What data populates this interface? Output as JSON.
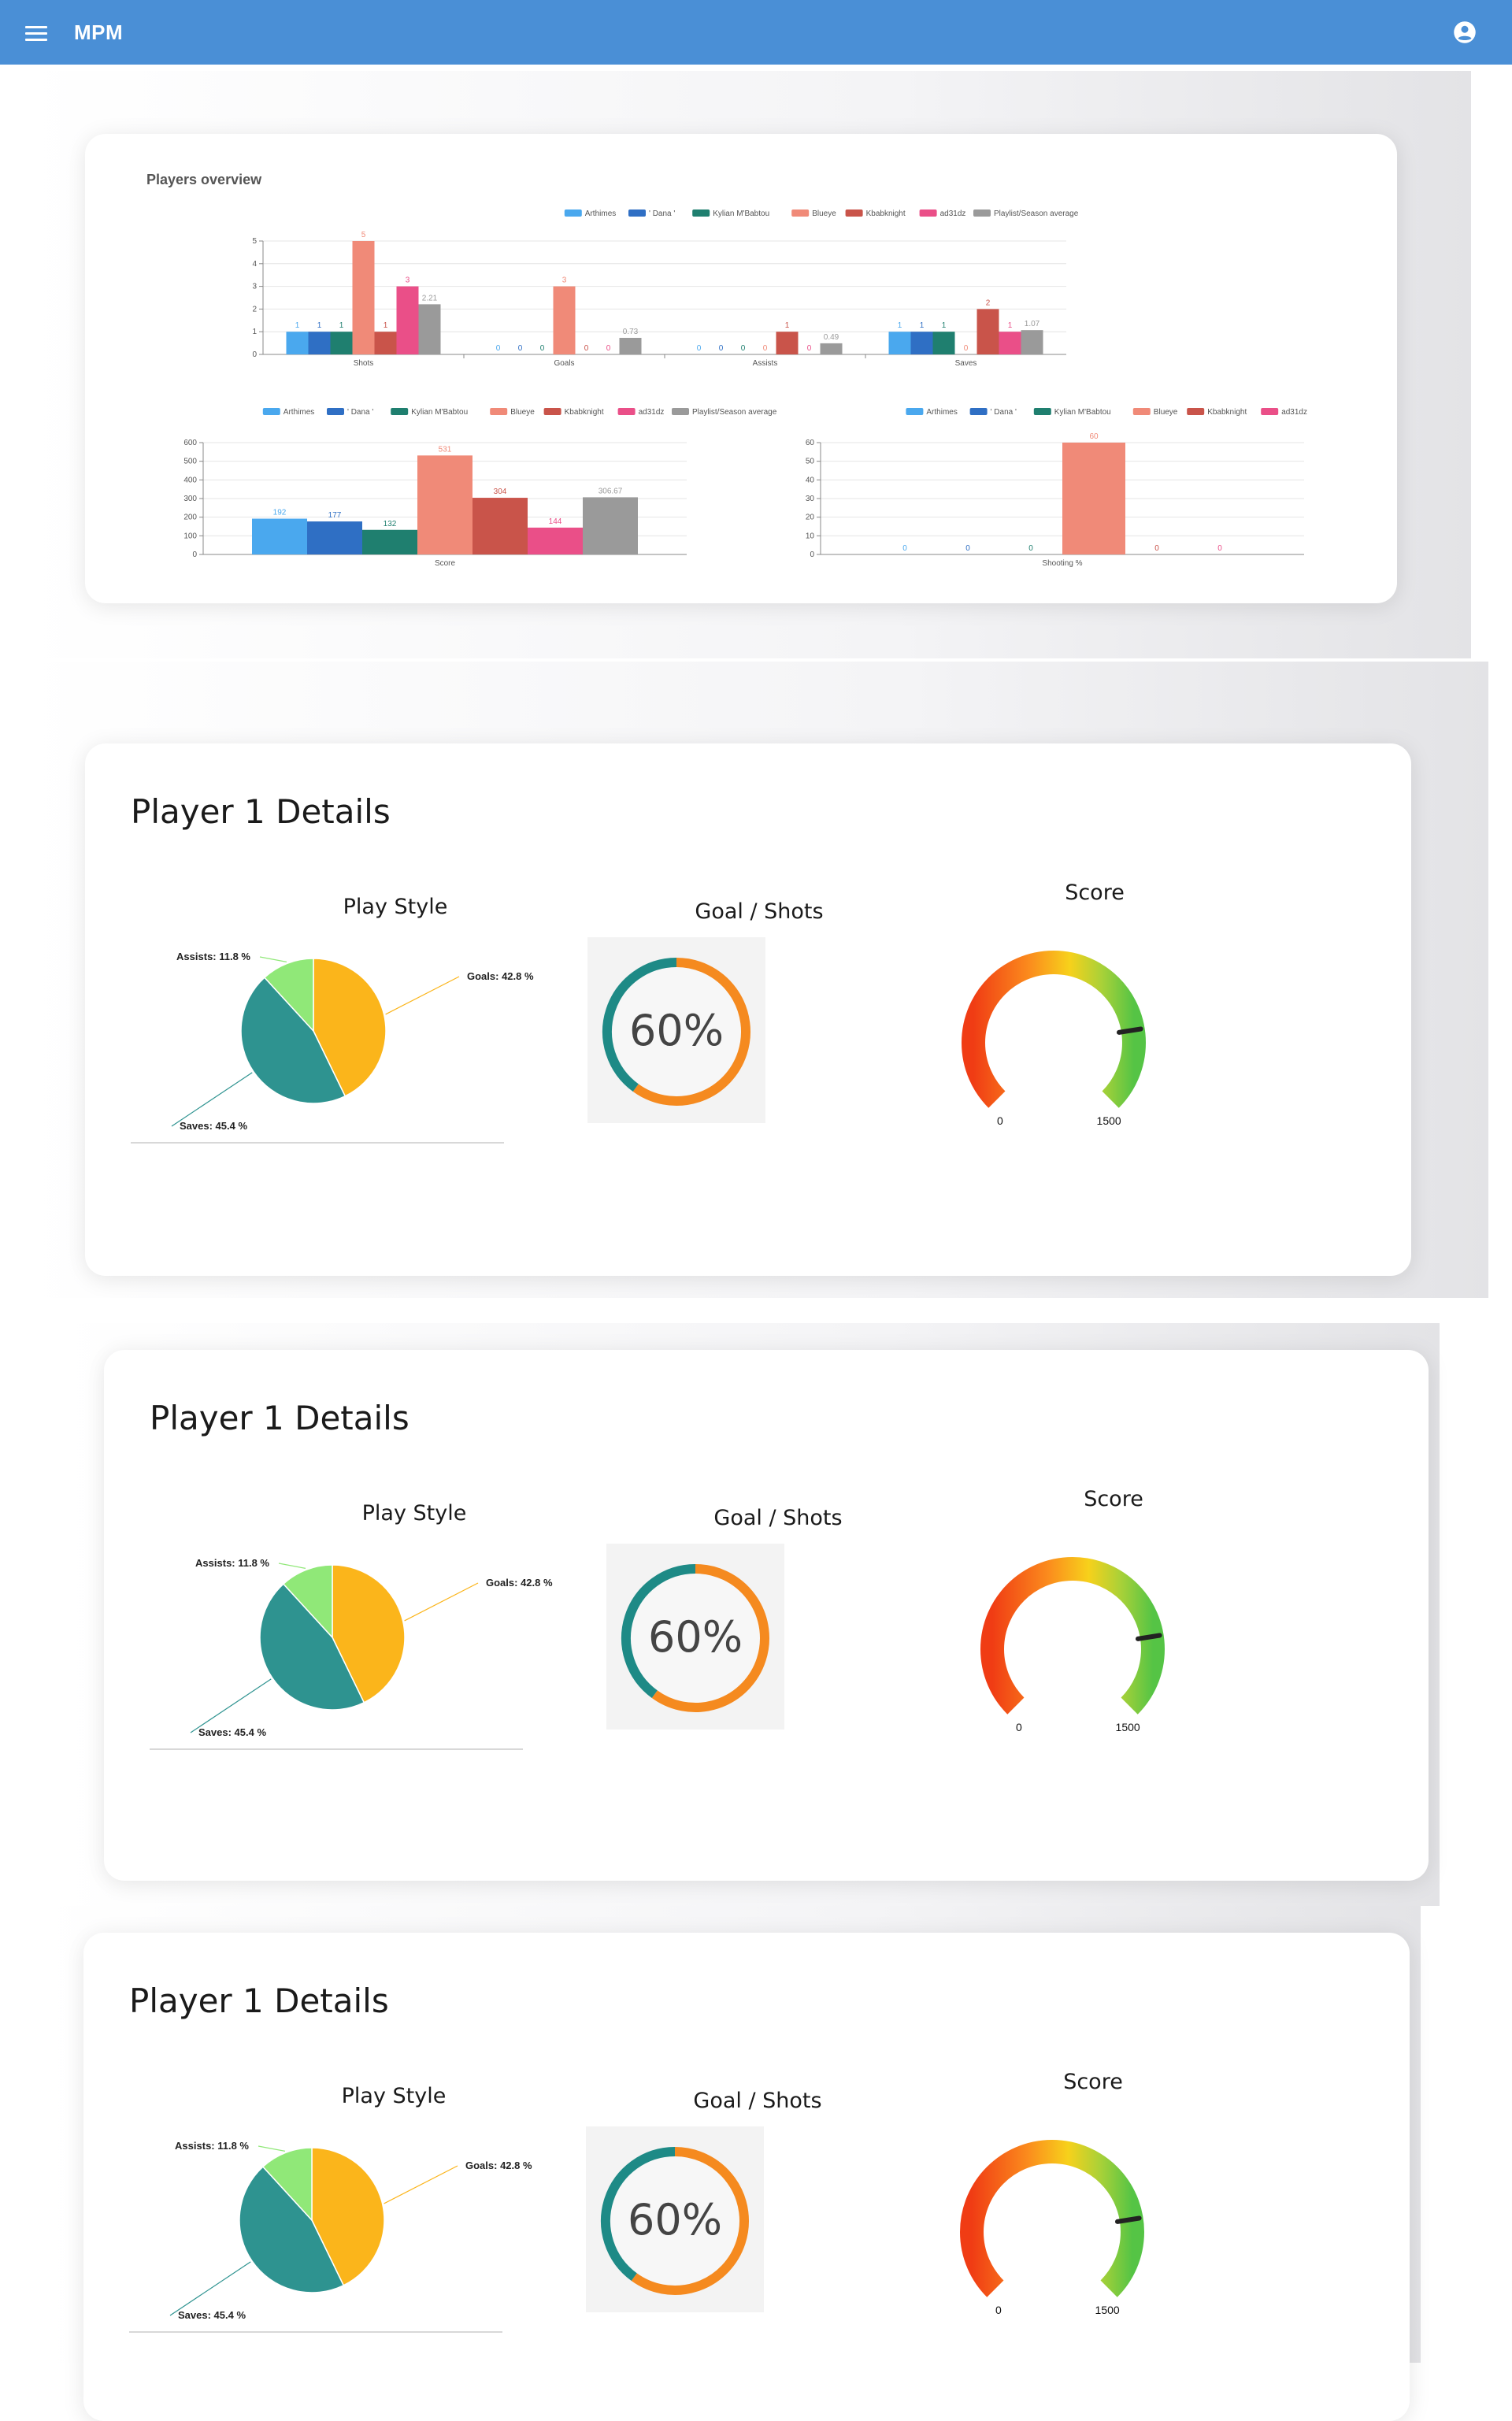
{
  "appbar": {
    "title": "MPM",
    "menu_icon": "menu-icon",
    "account_icon": "account-circle-icon",
    "color": "#4a8fd6"
  },
  "overview": {
    "title": "Players overview",
    "colors": [
      "#4aa8ee",
      "#2f6fc4",
      "#1f7f6f",
      "#f08a78",
      "#c9544a",
      "#ea4f88",
      "#9a9a9a"
    ],
    "chart_data": [
      {
        "type": "bar",
        "categories": [
          "Shots",
          "Goals",
          "Assists",
          "Saves"
        ],
        "ylim": [
          0,
          5
        ],
        "series": [
          {
            "name": "Arthimes",
            "values": [
              1,
              0,
              0,
              1
            ]
          },
          {
            "name": "' Dana '",
            "values": [
              1,
              0,
              0,
              1
            ]
          },
          {
            "name": "Kylian M'Babtou",
            "values": [
              1,
              0,
              0,
              1
            ]
          },
          {
            "name": "Blueye",
            "values": [
              5,
              3,
              0,
              0
            ]
          },
          {
            "name": "Kbabknight",
            "values": [
              1,
              0,
              1,
              2
            ]
          },
          {
            "name": "ad31dz",
            "values": [
              3,
              0,
              0,
              1
            ]
          },
          {
            "name": "Playlist/Season average",
            "values": [
              2.21,
              0.73,
              0.49,
              1.07
            ]
          }
        ],
        "legend": "top"
      },
      {
        "type": "bar",
        "categories": [
          "Score"
        ],
        "ylim": [
          0,
          600
        ],
        "series": [
          {
            "name": "Arthimes",
            "values": [
              192
            ]
          },
          {
            "name": "' Dana '",
            "values": [
              177
            ]
          },
          {
            "name": "Kylian M'Babtou",
            "values": [
              132
            ]
          },
          {
            "name": "Blueye",
            "values": [
              531
            ]
          },
          {
            "name": "Kbabknight",
            "values": [
              304
            ]
          },
          {
            "name": "ad31dz",
            "values": [
              144
            ]
          },
          {
            "name": "Playlist/Season average",
            "values": [
              306.67
            ]
          }
        ],
        "legend": "top"
      },
      {
        "type": "bar",
        "categories": [
          "Shooting %"
        ],
        "ylim": [
          0,
          60
        ],
        "series": [
          {
            "name": "Arthimes",
            "values": [
              0
            ]
          },
          {
            "name": "' Dana '",
            "values": [
              0
            ]
          },
          {
            "name": "Kylian M'Babtou",
            "values": [
              0
            ]
          },
          {
            "name": "Blueye",
            "values": [
              60
            ]
          },
          {
            "name": "Kbabknight",
            "values": [
              0
            ]
          },
          {
            "name": "ad31dz",
            "values": [
              0
            ]
          }
        ],
        "legend": "top"
      }
    ]
  },
  "players": [
    {
      "title": "Player 1 Details",
      "play_style": {
        "title": "Play Style",
        "slices": [
          {
            "label": "Goals: 42.8 %",
            "value": 42.8,
            "color": "#fbb51b"
          },
          {
            "label": "Saves: 45.4 %",
            "value": 45.4,
            "color": "#2e9390"
          },
          {
            "label": "Assists: 11.8 %",
            "value": 11.8,
            "color": "#90e878"
          }
        ]
      },
      "goal_shots": {
        "title": "Goal / Shots",
        "value_text": "60%",
        "value": 60
      },
      "score": {
        "title": "Score",
        "min": "0",
        "max": "1500",
        "value": 1200
      }
    },
    {
      "title": "Player 1 Details",
      "play_style": {
        "title": "Play Style",
        "slices": [
          {
            "label": "Goals: 42.8 %",
            "value": 42.8,
            "color": "#fbb51b"
          },
          {
            "label": "Saves: 45.4 %",
            "value": 45.4,
            "color": "#2e9390"
          },
          {
            "label": "Assists: 11.8 %",
            "value": 11.8,
            "color": "#90e878"
          }
        ]
      },
      "goal_shots": {
        "title": "Goal / Shots",
        "value_text": "60%",
        "value": 60
      },
      "score": {
        "title": "Score",
        "min": "0",
        "max": "1500",
        "value": 1200
      }
    },
    {
      "title": "Player 1 Details",
      "play_style": {
        "title": "Play Style",
        "slices": [
          {
            "label": "Goals: 42.8 %",
            "value": 42.8,
            "color": "#fbb51b"
          },
          {
            "label": "Saves: 45.4 %",
            "value": 45.4,
            "color": "#2e9390"
          },
          {
            "label": "Assists: 11.8 %",
            "value": 11.8,
            "color": "#90e878"
          }
        ]
      },
      "goal_shots": {
        "title": "Goal / Shots",
        "value_text": "60%",
        "value": 60
      },
      "score": {
        "title": "Score",
        "min": "0",
        "max": "1500",
        "value": 1200
      }
    }
  ]
}
